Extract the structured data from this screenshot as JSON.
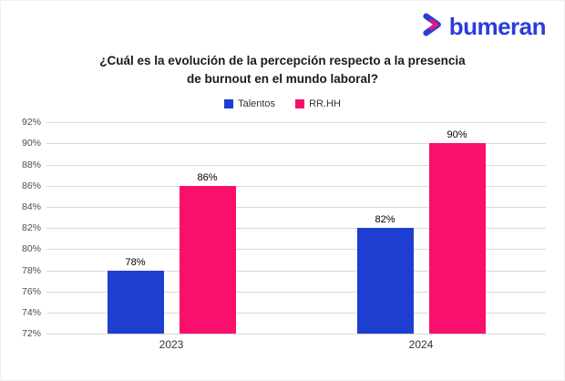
{
  "logo": {
    "text": "bumeran",
    "color": "#2b3cdb",
    "icon": "bumeran-chevron-icon",
    "icon_colors": {
      "outer": "#2b3cdb",
      "inner": "#fb0f6c"
    }
  },
  "title": {
    "line1": "¿Cuál es la evolución de la percepción respecto a la presencia",
    "line2": "de burnout en el mundo laboral?"
  },
  "chart_data": {
    "type": "bar",
    "categories": [
      "2023",
      "2024"
    ],
    "series": [
      {
        "name": "Talentos",
        "color": "#1e3ed2",
        "values": [
          78,
          82
        ]
      },
      {
        "name": "RR.HH",
        "color": "#fb0f6c",
        "values": [
          86,
          90
        ]
      }
    ],
    "data_labels": [
      "78%",
      "86%",
      "82%",
      "90%"
    ],
    "ylim": [
      72,
      92
    ],
    "ytick_step": 2,
    "ytick_suffix": "%",
    "grid": true,
    "legend_position": "top",
    "gridline_color": "#d9d9d9"
  }
}
